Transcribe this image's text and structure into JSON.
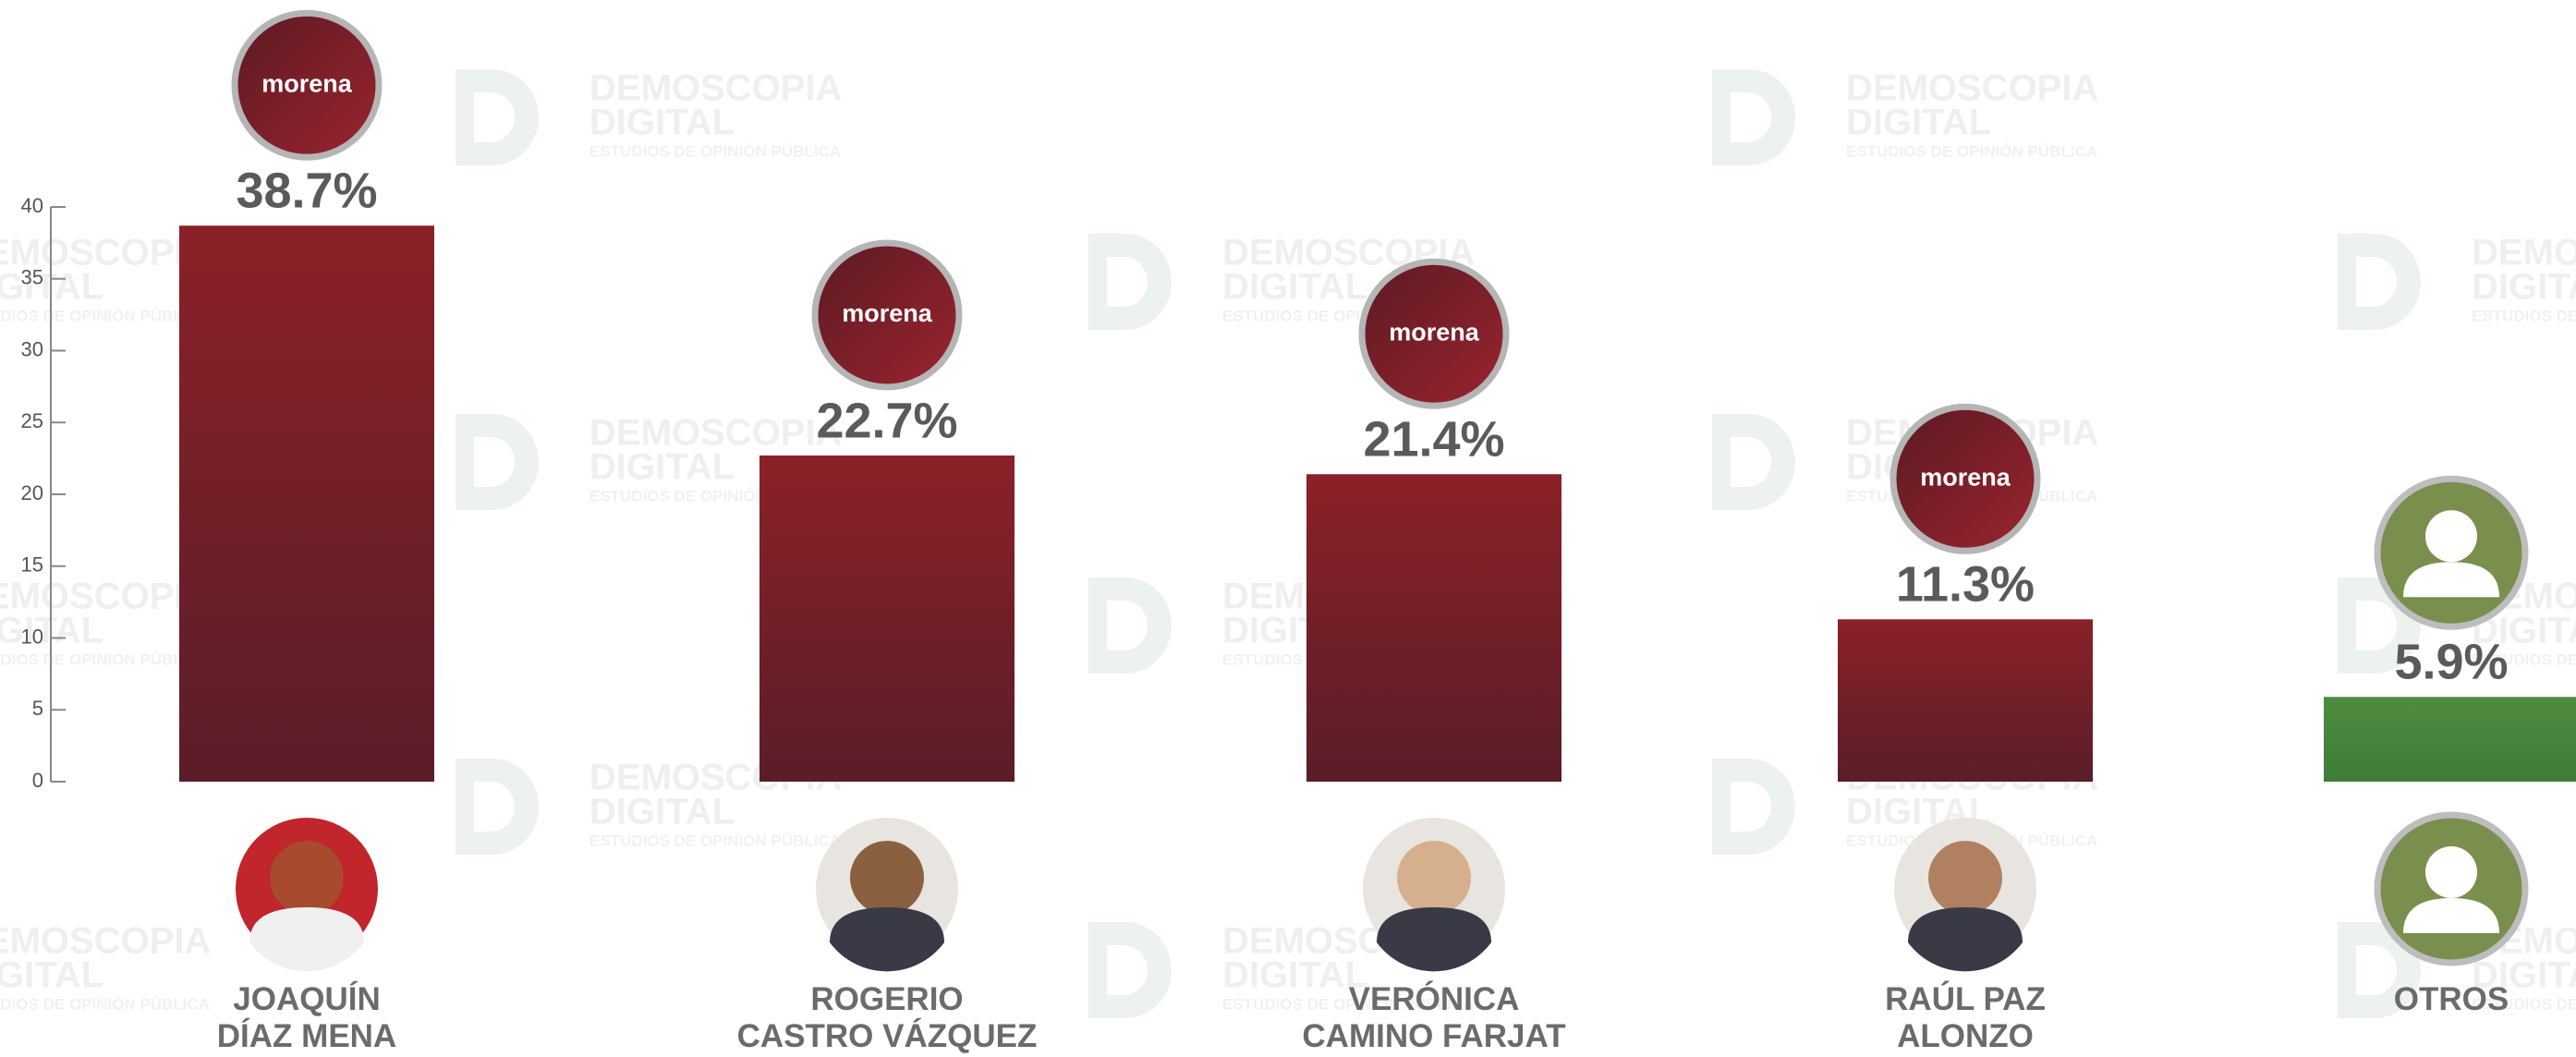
{
  "chart_data": {
    "type": "bar",
    "categories": [
      "JOAQUÍN\nDÍAZ MENA",
      "ROGERIO\nCASTRO VÁZQUEZ",
      "VERÓNICA\nCAMINO FARJAT",
      "RAÚL PAZ\nALONZO",
      "OTROS"
    ],
    "values": [
      38.7,
      22.7,
      21.4,
      11.3,
      5.9
    ],
    "value_labels": [
      "38.7%",
      "22.7%",
      "21.4%",
      "11.3%",
      "5.9%"
    ],
    "parties": [
      "morena",
      "morena",
      "morena",
      "morena",
      null
    ],
    "colors": [
      "#8b2128",
      "#8b2128",
      "#8b2128",
      "#8b2128",
      "#4f8c40"
    ],
    "ylim": [
      0,
      40
    ],
    "yticks": [
      0,
      5,
      10,
      15,
      20,
      25,
      30,
      35,
      40
    ],
    "watermark": {
      "line1": "DEMOSCOPIA",
      "line2": "DIGITAL",
      "tagline": "ESTUDIOS DE OPINIÓN PÚBLICA"
    }
  }
}
